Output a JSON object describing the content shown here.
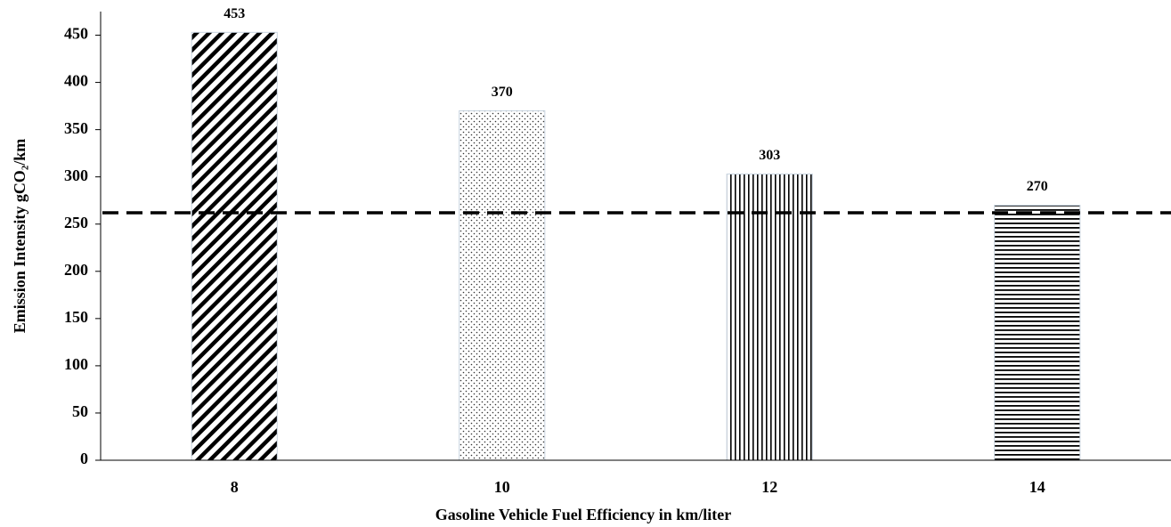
{
  "chart_data": {
    "type": "bar",
    "x_label": "Gasoline Vehicle Fuel Efficiency in km/liter",
    "y_label": "Emission Intensity  gCO₂/km",
    "categories": [
      "8",
      "10",
      "12",
      "14"
    ],
    "values": [
      453,
      370,
      303,
      270
    ],
    "patterns": [
      "diagonal",
      "dots",
      "vertical",
      "horizontal"
    ],
    "color": "#000000",
    "reference_line": 262,
    "ylim": [
      0,
      475
    ],
    "yticks": [
      0,
      50,
      100,
      150,
      200,
      250,
      300,
      350,
      400,
      450
    ],
    "grid": false
  }
}
